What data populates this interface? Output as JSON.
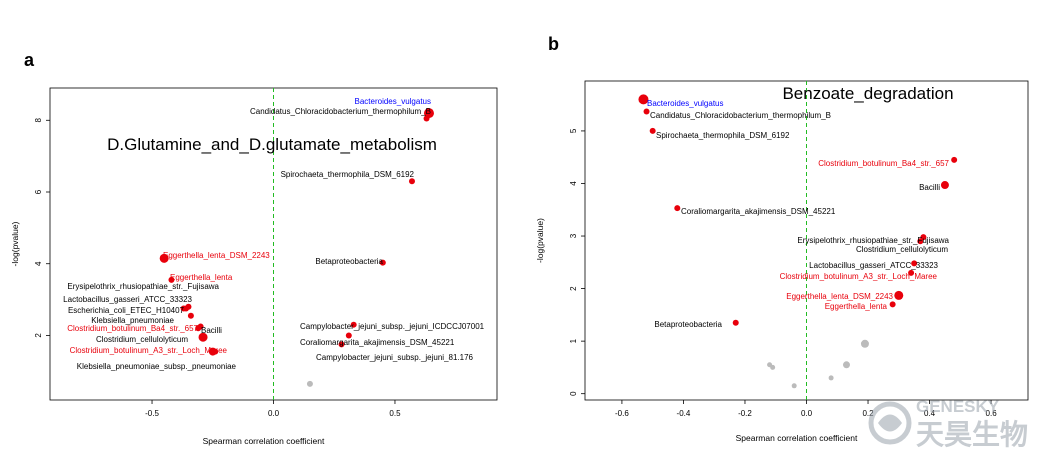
{
  "panels": {
    "a": {
      "letter": "a"
    },
    "b": {
      "letter": "b"
    }
  },
  "watermark": {
    "line1": "GENESKY",
    "line2": "天昊生物"
  },
  "chart_data": [
    {
      "type": "scatter",
      "panel": "a",
      "title": "D.Glutamine_and_D.glutamate_metabolism",
      "xlabel": "Spearman correlation coefficient",
      "ylabel": "-log(pvalue)",
      "xlim": [
        -0.92,
        0.92
      ],
      "ylim": [
        0.2,
        8.9
      ],
      "xticks": [
        -0.5,
        0.0,
        0.5
      ],
      "xtick_labels": [
        "-0.5",
        "0.0",
        "0.5"
      ],
      "yticks": [
        2,
        4,
        6,
        8
      ],
      "ytick_labels": [
        "2",
        "4",
        "6",
        "8"
      ],
      "vline": 0,
      "grid": false,
      "colors": {
        "significant": "#e8000b",
        "insignificant": "#bbbbbb",
        "highlight_label": "#0000ff",
        "vline": "#22bb22"
      },
      "points": [
        {
          "x": 0.64,
          "y": 8.2,
          "size": 5,
          "color": "#e8000b",
          "label": "Bacteroides_vulgatus",
          "label_color": "#0000ff",
          "label_side": "left"
        },
        {
          "x": 0.63,
          "y": 8.05,
          "size": 3,
          "color": "#e8000b",
          "label": "Candidatus_Chloracidobacterium_thermophilum_B",
          "label_color": "#000000",
          "label_side": "left"
        },
        {
          "x": 0.57,
          "y": 6.3,
          "size": 3,
          "color": "#e8000b",
          "label": "Spirochaeta_thermophila_DSM_6192",
          "label_color": "#000000",
          "label_side": "left"
        },
        {
          "x": -0.45,
          "y": 4.15,
          "size": 4.5,
          "color": "#e8000b",
          "label": "Eggerthella_lenta_DSM_2243",
          "label_color": "#e8000b",
          "label_side": "right"
        },
        {
          "x": 0.45,
          "y": 4.03,
          "size": 3,
          "color": "#e8000b",
          "label": "Betaproteobacteria",
          "label_color": "#000000",
          "label_side": "left"
        },
        {
          "x": -0.42,
          "y": 3.55,
          "size": 3,
          "color": "#e8000b",
          "label": "Eggerthella_lenta",
          "label_color": "#e8000b",
          "label_side": "right"
        },
        {
          "x": -0.37,
          "y": 2.75,
          "size": 3,
          "color": "#e8000b",
          "label": "Erysipelothrix_rhusiopathiae_str._Fujisawa",
          "label_color": "#000000",
          "label_side": "left"
        },
        {
          "x": -0.36,
          "y": 2.75,
          "size": 3,
          "color": "#e8000b",
          "label": "Lactobacillus_gasseri_ATCC_33323",
          "label_color": "#000000",
          "label_side": "left"
        },
        {
          "x": -0.35,
          "y": 2.8,
          "size": 3,
          "color": "#e8000b",
          "label": "Escherichia_coli_ETEC_H10407",
          "label_color": "#000000",
          "label_side": "left"
        },
        {
          "x": -0.34,
          "y": 2.55,
          "size": 3,
          "color": "#e8000b",
          "label": "Klebsiella_pneumoniae",
          "label_color": "#000000",
          "label_side": "left"
        },
        {
          "x": -0.31,
          "y": 2.2,
          "size": 3,
          "color": "#e8000b",
          "label": "Clostridium_botulinum_Ba4_str._657",
          "label_color": "#e8000b",
          "label_side": "left"
        },
        {
          "x": -0.3,
          "y": 2.25,
          "size": 3,
          "color": "#e8000b",
          "label": "Bacilli",
          "label_color": "#000000",
          "label_side": "right"
        },
        {
          "x": -0.29,
          "y": 1.95,
          "size": 4.5,
          "color": "#e8000b",
          "label": "Clostridium_cellulolyticum",
          "label_color": "#000000",
          "label_side": "left"
        },
        {
          "x": -0.25,
          "y": 1.55,
          "size": 4,
          "color": "#e8000b",
          "label": "Clostridium_botulinum_A3_str._Loch_Maree",
          "label_color": "#e8000b",
          "label_side": "left"
        },
        {
          "x": -0.24,
          "y": 1.55,
          "size": 3,
          "color": "#e8000b",
          "label": "Klebsiella_pneumoniae_subsp._pneumoniae",
          "label_color": "#000000",
          "label_side": "left"
        },
        {
          "x": 0.33,
          "y": 2.3,
          "size": 3,
          "color": "#e8000b",
          "label": "Campylobacter_jejuni_subsp._jejuni_ICDCCJ07001",
          "label_color": "#000000",
          "label_side": "right"
        },
        {
          "x": 0.31,
          "y": 2.0,
          "size": 3,
          "color": "#e8000b",
          "label": "Coraliomargarita_akajimensis_DSM_45221",
          "label_color": "#000000",
          "label_side": "right"
        },
        {
          "x": 0.28,
          "y": 1.75,
          "size": 3,
          "color": "#e8000b",
          "label": "Campylobacter_jejuni_subsp._jejuni_81.176",
          "label_color": "#000000",
          "label_side": "right"
        },
        {
          "x": 0.15,
          "y": 0.65,
          "size": 3,
          "color": "#bbbbbb",
          "label": "",
          "label_color": "#000000",
          "label_side": "right"
        }
      ]
    },
    {
      "type": "scatter",
      "panel": "b",
      "title": "Benzoate_degradation",
      "xlabel": "Spearman correlation coefficient",
      "ylabel": "-log(pvalue)",
      "xlim": [
        -0.72,
        0.72
      ],
      "ylim": [
        -0.12,
        5.95
      ],
      "xticks": [
        -0.6,
        -0.4,
        -0.2,
        0.0,
        0.2,
        0.4,
        0.6
      ],
      "xtick_labels": [
        "-0.6",
        "-0.4",
        "-0.2",
        "0.0",
        "0.2",
        "0.4",
        "0.6"
      ],
      "yticks": [
        0,
        1,
        2,
        3,
        4,
        5
      ],
      "ytick_labels": [
        "0",
        "1",
        "2",
        "3",
        "4",
        "5"
      ],
      "vline": 0,
      "grid": false,
      "colors": {
        "significant": "#e8000b",
        "insignificant": "#bbbbbb",
        "highlight_label": "#0000ff",
        "vline": "#22bb22"
      },
      "points": [
        {
          "x": -0.53,
          "y": 5.6,
          "size": 5,
          "color": "#e8000b",
          "label": "Bacteroides_vulgatus",
          "label_color": "#0000ff",
          "label_side": "right"
        },
        {
          "x": -0.52,
          "y": 5.37,
          "size": 3,
          "color": "#e8000b",
          "label": "Candidatus_Chloracidobacterium_thermophilum_B",
          "label_color": "#000000",
          "label_side": "right"
        },
        {
          "x": -0.5,
          "y": 5.0,
          "size": 3,
          "color": "#e8000b",
          "label": "Spirochaeta_thermophila_DSM_6192",
          "label_color": "#000000",
          "label_side": "right"
        },
        {
          "x": 0.48,
          "y": 4.45,
          "size": 3,
          "color": "#e8000b",
          "label": "Clostridium_botulinum_Ba4_str._657",
          "label_color": "#e8000b",
          "label_side": "left"
        },
        {
          "x": 0.45,
          "y": 3.97,
          "size": 4,
          "color": "#e8000b",
          "label": "Bacilli",
          "label_color": "#000000",
          "label_side": "left"
        },
        {
          "x": -0.42,
          "y": 3.53,
          "size": 3,
          "color": "#e8000b",
          "label": "Coraliomargarita_akajimensis_DSM_45221",
          "label_color": "#000000",
          "label_side": "right"
        },
        {
          "x": 0.38,
          "y": 2.98,
          "size": 3,
          "color": "#e8000b",
          "label": "Erysipelothrix_rhusiopathiae_str._Fujisawa",
          "label_color": "#000000",
          "label_side": "left"
        },
        {
          "x": 0.37,
          "y": 2.9,
          "size": 3,
          "color": "#e8000b",
          "label": "Clostridium_cellulolyticum",
          "label_color": "#000000",
          "label_side": "left"
        },
        {
          "x": 0.35,
          "y": 2.48,
          "size": 3,
          "color": "#e8000b",
          "label": "Lactobacillus_gasseri_ATCC_33323",
          "label_color": "#000000",
          "label_side": "left"
        },
        {
          "x": 0.34,
          "y": 2.3,
          "size": 3,
          "color": "#e8000b",
          "label": "Clostridium_botulinum_A3_str._Loch_Maree",
          "label_color": "#e8000b",
          "label_side": "left"
        },
        {
          "x": 0.3,
          "y": 1.87,
          "size": 4.5,
          "color": "#e8000b",
          "label": "Eggerthella_lenta_DSM_2243",
          "label_color": "#e8000b",
          "label_side": "left"
        },
        {
          "x": 0.28,
          "y": 1.7,
          "size": 3,
          "color": "#e8000b",
          "label": "Eggerthella_lenta",
          "label_color": "#e8000b",
          "label_side": "left"
        },
        {
          "x": -0.23,
          "y": 1.35,
          "size": 3,
          "color": "#e8000b",
          "label": "Betaproteobacteria",
          "label_color": "#000000",
          "label_side": "left"
        },
        {
          "x": 0.19,
          "y": 0.95,
          "size": 4,
          "color": "#bbbbbb",
          "label": "",
          "label_color": "#000000",
          "label_side": "right"
        },
        {
          "x": 0.13,
          "y": 0.55,
          "size": 3.5,
          "color": "#bbbbbb",
          "label": "",
          "label_color": "#000000",
          "label_side": "right"
        },
        {
          "x": -0.12,
          "y": 0.55,
          "size": 2.5,
          "color": "#bbbbbb",
          "label": "",
          "label_color": "#000000",
          "label_side": "right"
        },
        {
          "x": -0.11,
          "y": 0.5,
          "size": 2.5,
          "color": "#bbbbbb",
          "label": "",
          "label_color": "#000000",
          "label_side": "right"
        },
        {
          "x": 0.08,
          "y": 0.3,
          "size": 2.5,
          "color": "#bbbbbb",
          "label": "",
          "label_color": "#000000",
          "label_side": "right"
        },
        {
          "x": -0.04,
          "y": 0.15,
          "size": 2.5,
          "color": "#bbbbbb",
          "label": "",
          "label_color": "#000000",
          "label_side": "right"
        }
      ]
    }
  ]
}
